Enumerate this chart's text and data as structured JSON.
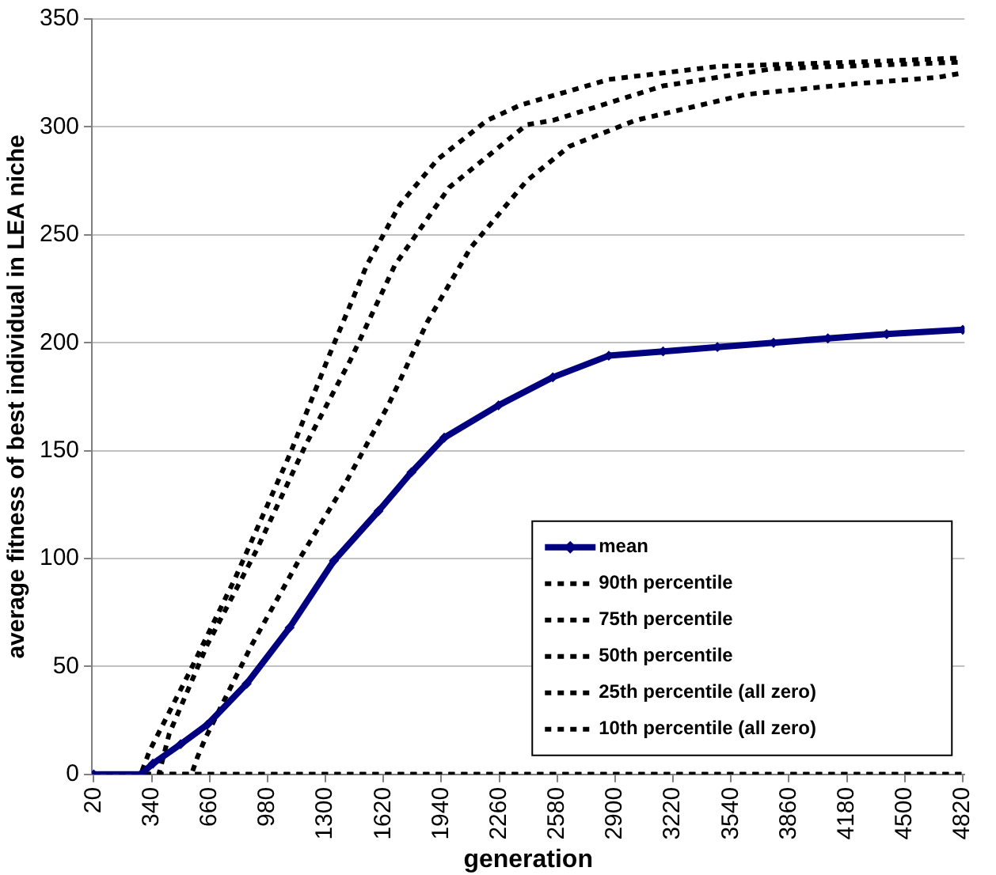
{
  "chart_data": {
    "type": "line",
    "xlabel": "generation",
    "ylabel": "average fitness of best individual in LEA niche",
    "xlim": [
      10,
      4830
    ],
    "xticks": [
      20,
      340,
      660,
      980,
      1300,
      1620,
      1940,
      2260,
      2580,
      2900,
      3220,
      3540,
      3860,
      4180,
      4500,
      4820
    ],
    "ylim": [
      0,
      350
    ],
    "yticks": [
      0,
      50,
      100,
      150,
      200,
      250,
      300,
      350
    ],
    "grid": "y",
    "legend": "bottom right",
    "series": [
      {
        "name": "mean",
        "color": "#000080",
        "marker": "diamond",
        "line_style": "solid",
        "x": [
          20,
          280,
          347,
          500,
          647,
          865,
          1102,
          1347,
          1593,
          1775,
          1956,
          2256,
          2556,
          2865,
          3165,
          3465,
          3775,
          4075,
          4400,
          4820
        ],
        "values": [
          0,
          0,
          5,
          14,
          23,
          42,
          68,
          99,
          122,
          140,
          156,
          171,
          184,
          194,
          196,
          198,
          200,
          202,
          204,
          206
        ]
      },
      {
        "name": "90th percentile",
        "color": "#000000",
        "marker": "none",
        "line_style": "dashed",
        "x": [
          20,
          280,
          329,
          547,
          802,
          1102,
          1320,
          1529,
          1711,
          1920,
          2193,
          2374,
          2865,
          3465,
          4229,
          4820
        ],
        "values": [
          0,
          0,
          11,
          47,
          91,
          148,
          194,
          236,
          264,
          285,
          303,
          310,
          322,
          328,
          330,
          332
        ]
      },
      {
        "name": "75th percentile",
        "color": "#000000",
        "marker": "none",
        "line_style": "dashed",
        "x": [
          20,
          380,
          438,
          647,
          920,
          1193,
          1438,
          1684,
          1984,
          2411,
          2556,
          3165,
          3775,
          4820
        ],
        "values": [
          0,
          0,
          19,
          60,
          104,
          153,
          192,
          236,
          272,
          301,
          303,
          319,
          327,
          330
        ]
      },
      {
        "name": "50th percentile",
        "color": "#000000",
        "marker": "none",
        "line_style": "dashed",
        "x": [
          20,
          560,
          593,
          638,
          893,
          1165,
          1411,
          1647,
          1865,
          2102,
          2411,
          2647,
          3011,
          3620,
          4229,
          4684,
          4820
        ],
        "values": [
          0,
          0,
          8,
          17,
          60,
          101,
          135,
          171,
          210,
          244,
          275,
          291,
          303,
          315,
          320,
          323,
          325
        ]
      },
      {
        "name": "25th percentile (all zero)",
        "color": "#000000",
        "marker": "none",
        "line_style": "dashed",
        "x": [
          20,
          4820
        ],
        "values": [
          0,
          0
        ]
      },
      {
        "name": "10th percentile (all zero)",
        "color": "#000000",
        "marker": "none",
        "line_style": "dashed",
        "x": [
          20,
          4820
        ],
        "values": [
          0,
          0
        ]
      }
    ]
  }
}
